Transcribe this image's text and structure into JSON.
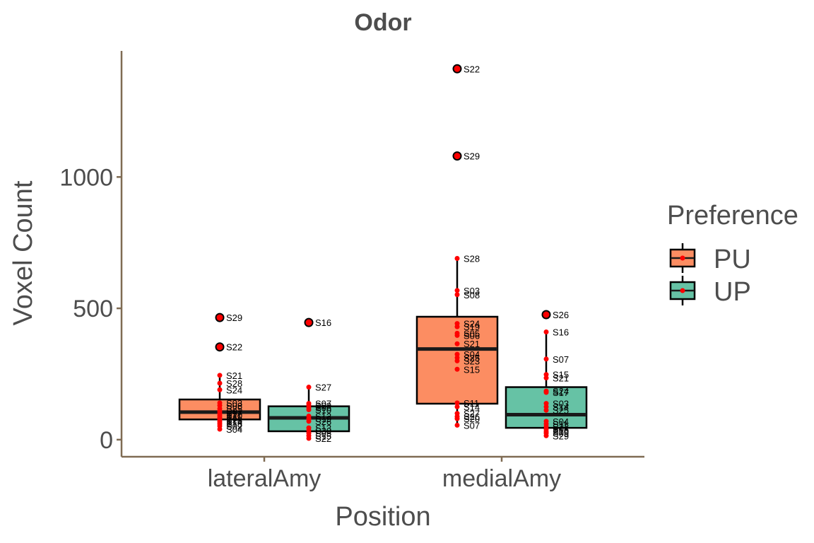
{
  "chart_data": {
    "type": "box",
    "title": "Odor",
    "xlabel": "Position",
    "ylabel": "Voxel Count",
    "categories": [
      "lateralAmy",
      "medialAmy"
    ],
    "y_ticks": [
      0,
      500,
      1000
    ],
    "ylim": [
      -65,
      1480
    ],
    "grid": false,
    "legend": {
      "title": "Preference",
      "placement": "right",
      "entries": [
        {
          "name": "PU",
          "color": "#fc8d62"
        },
        {
          "name": "UP",
          "color": "#66c2a5"
        }
      ]
    },
    "boxes": [
      {
        "category": "lateralAmy",
        "series": "PU",
        "q1": 77,
        "median": 105,
        "q3": 153,
        "whisker_low": 40,
        "whisker_high": 245,
        "outliers": [
          {
            "label": "S29",
            "y": 465
          },
          {
            "label": "S22",
            "y": 353
          }
        ],
        "points": [
          {
            "label": "S21",
            "y": 245
          },
          {
            "label": "S28",
            "y": 215
          },
          {
            "label": "S24",
            "y": 190
          },
          {
            "label": "S03",
            "y": 140
          },
          {
            "label": "S08",
            "y": 130
          },
          {
            "label": "S25",
            "y": 118
          },
          {
            "label": "S01",
            "y": 108
          },
          {
            "label": "S17",
            "y": 100
          },
          {
            "label": "S20",
            "y": 92
          },
          {
            "label": "S11",
            "y": 84
          },
          {
            "label": "S23",
            "y": 76
          },
          {
            "label": "S14",
            "y": 68
          },
          {
            "label": "S18",
            "y": 60
          },
          {
            "label": "S02",
            "y": 52
          },
          {
            "label": "S04",
            "y": 40
          }
        ]
      },
      {
        "category": "lateralAmy",
        "series": "UP",
        "q1": 32,
        "median": 83,
        "q3": 127,
        "whisker_low": 5,
        "whisker_high": 200,
        "outliers": [
          {
            "label": "S16",
            "y": 446
          }
        ],
        "points": [
          {
            "label": "S27",
            "y": 200
          },
          {
            "label": "S07",
            "y": 138
          },
          {
            "label": "S09",
            "y": 130
          },
          {
            "label": "S06",
            "y": 122
          },
          {
            "label": "S10",
            "y": 114
          },
          {
            "label": "S12",
            "y": 90
          },
          {
            "label": "S19",
            "y": 80
          },
          {
            "label": "S26",
            "y": 70
          },
          {
            "label": "S13",
            "y": 45
          },
          {
            "label": "S30",
            "y": 35
          },
          {
            "label": "S05",
            "y": 25
          },
          {
            "label": "S15",
            "y": 15
          },
          {
            "label": "S22",
            "y": 5
          }
        ]
      },
      {
        "category": "medialAmy",
        "series": "PU",
        "q1": 137,
        "median": 345,
        "q3": 468,
        "whisker_low": 55,
        "whisker_high": 690,
        "outliers": [
          {
            "label": "S22",
            "y": 1412
          },
          {
            "label": "S29",
            "y": 1080
          }
        ],
        "points": [
          {
            "label": "S28",
            "y": 690
          },
          {
            "label": "S03",
            "y": 568
          },
          {
            "label": "S08",
            "y": 552
          },
          {
            "label": "S24",
            "y": 442
          },
          {
            "label": "S19",
            "y": 430
          },
          {
            "label": "S05",
            "y": 405
          },
          {
            "label": "S06",
            "y": 397
          },
          {
            "label": "S21",
            "y": 365
          },
          {
            "label": "S04",
            "y": 325
          },
          {
            "label": "S25",
            "y": 312
          },
          {
            "label": "S23",
            "y": 300
          },
          {
            "label": "S15",
            "y": 268
          },
          {
            "label": "S11",
            "y": 140
          },
          {
            "label": "S14",
            "y": 125
          },
          {
            "label": "S27",
            "y": 100
          },
          {
            "label": "S26",
            "y": 88
          },
          {
            "label": "S20",
            "y": 80
          },
          {
            "label": "S07",
            "y": 55
          }
        ]
      },
      {
        "category": "medialAmy",
        "series": "UP",
        "q1": 45,
        "median": 95,
        "q3": 200,
        "whisker_low": 15,
        "whisker_high": 410,
        "outliers": [
          {
            "label": "S26",
            "y": 476
          }
        ],
        "points": [
          {
            "label": "S16",
            "y": 410
          },
          {
            "label": "S07",
            "y": 307
          },
          {
            "label": "S15",
            "y": 248
          },
          {
            "label": "S21",
            "y": 235
          },
          {
            "label": "S24",
            "y": 185
          },
          {
            "label": "S17",
            "y": 180
          },
          {
            "label": "S03",
            "y": 138
          },
          {
            "label": "S14",
            "y": 125
          },
          {
            "label": "S25",
            "y": 112
          },
          {
            "label": "S04",
            "y": 70
          },
          {
            "label": "S11",
            "y": 60
          },
          {
            "label": "S22",
            "y": 50
          },
          {
            "label": "S08",
            "y": 40
          },
          {
            "label": "S10",
            "y": 32
          },
          {
            "label": "S09",
            "y": 25
          },
          {
            "label": "S29",
            "y": 15
          }
        ]
      }
    ]
  }
}
